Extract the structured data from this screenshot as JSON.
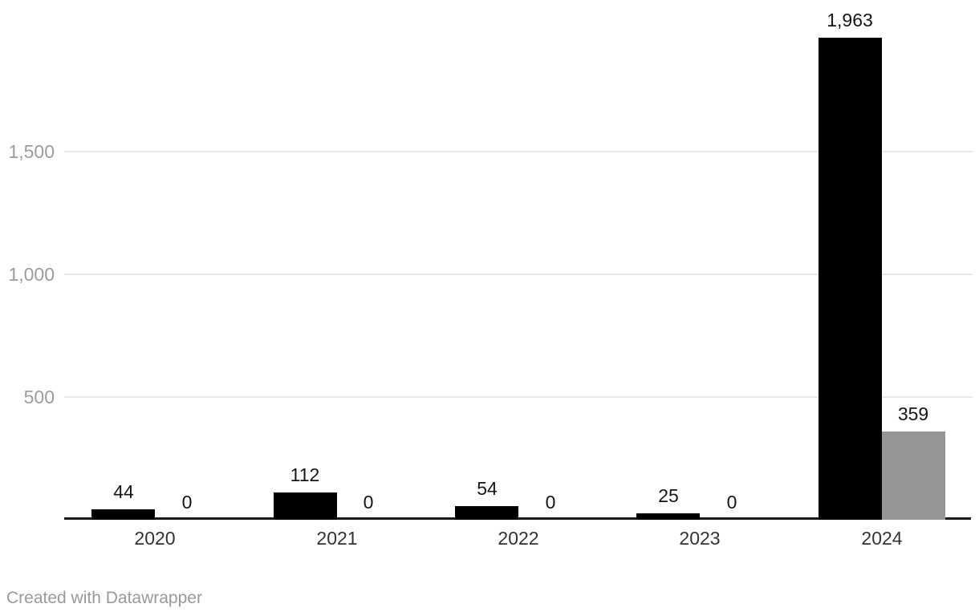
{
  "chart_data": {
    "type": "bar",
    "title": "",
    "xlabel": "",
    "ylabel": "",
    "categories": [
      "2020",
      "2021",
      "2022",
      "2023",
      "2024"
    ],
    "series": [
      {
        "name": "primary",
        "color": "#000000",
        "values": [
          44,
          112,
          54,
          25,
          1963
        ]
      },
      {
        "name": "secondary",
        "color": "#959595",
        "values": [
          0,
          0,
          0,
          0,
          359
        ]
      }
    ],
    "bar_value_labels": [
      "44",
      "112",
      "54",
      "25",
      "1,963",
      "0",
      "0",
      "0",
      "0",
      "359"
    ],
    "yticks": [
      500,
      1000,
      1500
    ],
    "ytick_labels": [
      "500",
      "1,000",
      "1,500"
    ],
    "ylim": [
      0,
      1963
    ],
    "grid": true,
    "legend_position": "none"
  },
  "footer": {
    "credit": "Created with Datawrapper"
  },
  "palette": {
    "bar_primary": "#000000",
    "bar_secondary": "#959595",
    "gridline": "#e8e8e8",
    "axis_line": "#191919",
    "tick_label": "#9d9d9d",
    "value_label": "#161616",
    "category_label": "#333333",
    "credit_text": "#9a9a9a",
    "background": "#ffffff"
  }
}
